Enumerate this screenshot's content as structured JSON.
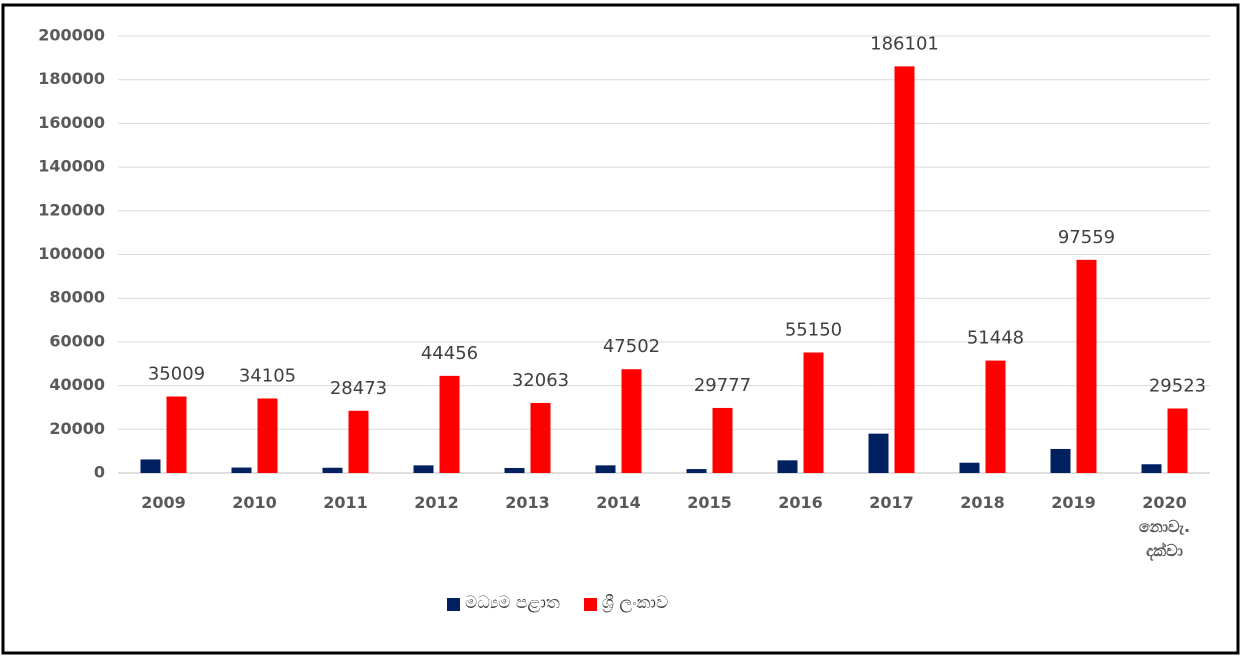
{
  "chart_data": {
    "type": "bar",
    "categories": [
      "2009",
      "2010",
      "2011",
      "2012",
      "2013",
      "2014",
      "2015",
      "2016",
      "2017",
      "2018",
      "2019",
      "2020\nනොවැ.\nදක්වා"
    ],
    "series": [
      {
        "name": "මධ්‍යම පළාත",
        "color": "#002060",
        "values": [
          6200,
          2500,
          2400,
          3500,
          2300,
          3500,
          1800,
          5800,
          18000,
          4700,
          11000,
          4000
        ]
      },
      {
        "name": "ශ්‍රී ලංකාව",
        "color": "#ff0000",
        "values": [
          35009,
          34105,
          28473,
          44456,
          32063,
          47502,
          29777,
          55150,
          186101,
          51448,
          97559,
          29523
        ]
      }
    ],
    "ylim": [
      0,
      200000
    ],
    "yticks": [
      0,
      20000,
      40000,
      60000,
      80000,
      100000,
      120000,
      140000,
      160000,
      180000,
      200000
    ],
    "grid": true,
    "legend": "bottom",
    "data_labels_series": 1
  }
}
